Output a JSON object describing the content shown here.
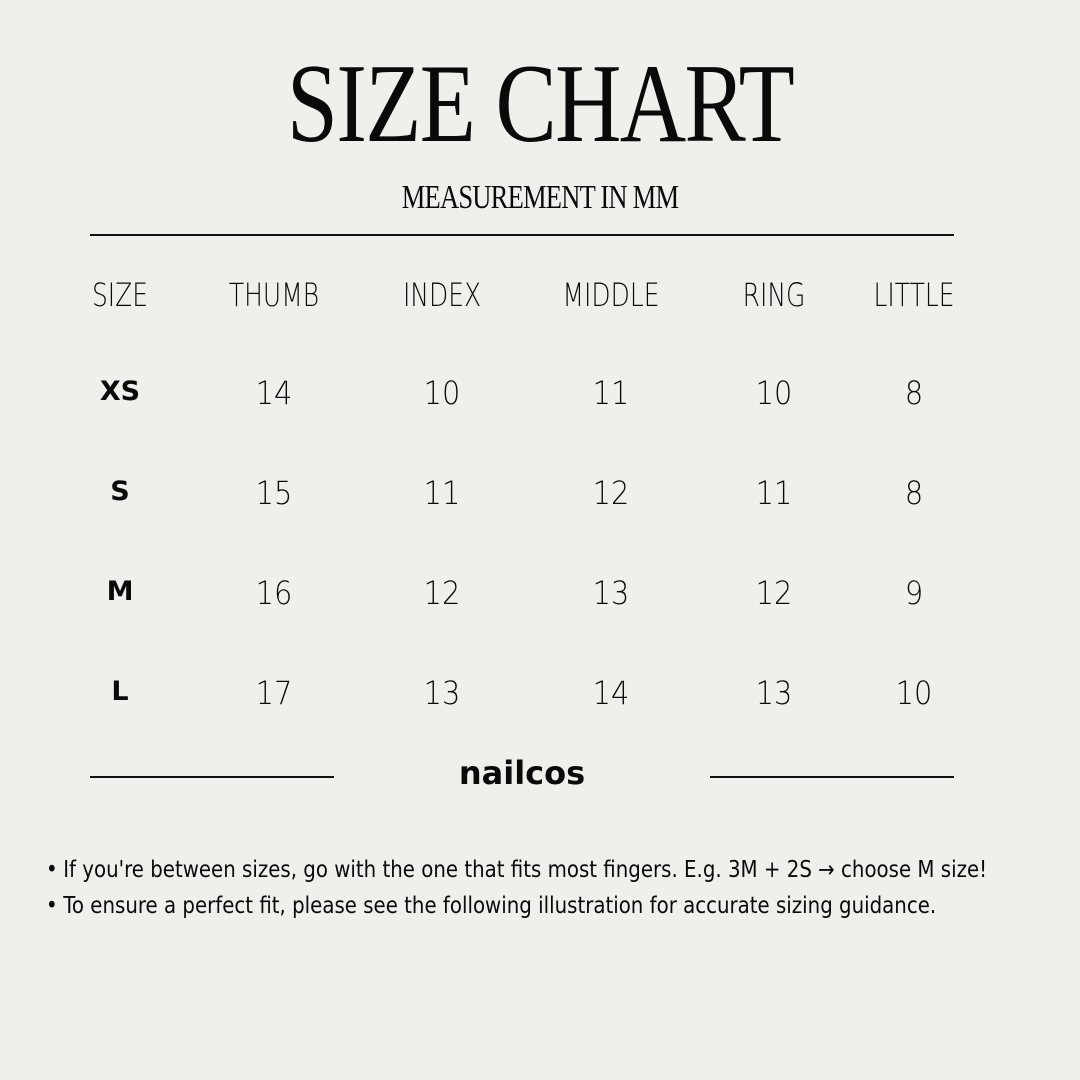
{
  "title": "SIZE CHART",
  "subtitle": "MEASUREMENT IN MM",
  "table": {
    "headers": [
      "SIZE",
      "THUMB",
      "INDEX",
      "MIDDLE",
      "RING",
      "LITTLE"
    ],
    "rows": [
      [
        "XS",
        "14",
        "10",
        "11",
        "10",
        "8"
      ],
      [
        "S",
        "15",
        "11",
        "12",
        "11",
        "8"
      ],
      [
        "M",
        "16",
        "12",
        "13",
        "12",
        "9"
      ],
      [
        "L",
        "17",
        "13",
        "14",
        "13",
        "10"
      ]
    ]
  },
  "brand": "nailcos",
  "notes": [
    "If you're between sizes, go with the one that fits most fingers. E.g. 3M + 2S → choose M size!",
    "To ensure a perfect fit, please see the following illustration for accurate sizing guidance."
  ],
  "colors": {
    "background": "#efefeb",
    "text": "#0a0a0a"
  }
}
